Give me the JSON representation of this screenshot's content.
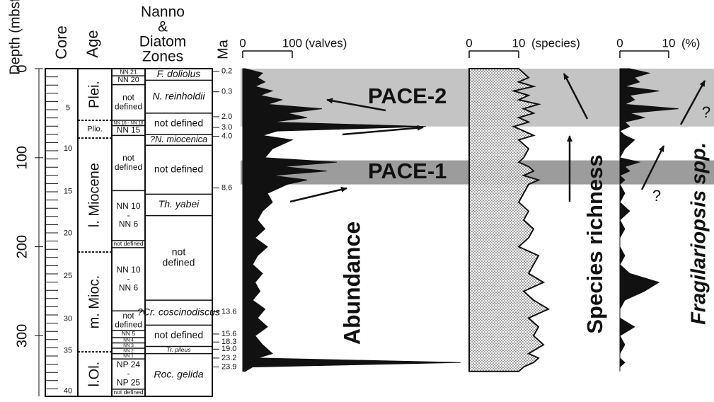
{
  "header": {
    "depth_label": "Depth (mbsf)",
    "core_label": "Core",
    "age_label": "Age",
    "zones_label": [
      "Nanno",
      "&",
      "Diatom",
      "Zones"
    ],
    "ma_label": "Ma"
  },
  "depth_axis": {
    "ylim": [
      0,
      368
    ],
    "yticks": [
      0,
      100,
      200,
      300
    ]
  },
  "cores": [
    {
      "depth": 44,
      "label": "5"
    },
    {
      "depth": 90,
      "label": "10"
    },
    {
      "depth": 138,
      "label": "15"
    },
    {
      "depth": 185,
      "label": "20"
    },
    {
      "depth": 233,
      "label": "25"
    },
    {
      "depth": 281,
      "label": "30"
    },
    {
      "depth": 317,
      "label": "35"
    },
    {
      "depth": 362,
      "label": "40"
    }
  ],
  "ages": [
    {
      "top": 0,
      "bottom": 58,
      "label": "Plei."
    },
    {
      "top": 58,
      "bottom": 78,
      "label": "Plio."
    },
    {
      "top": 78,
      "bottom": 206,
      "label": "l. Miocene"
    },
    {
      "top": 206,
      "bottom": 318,
      "label": "m. Mioc."
    },
    {
      "top": 318,
      "bottom": 368,
      "label": "l.Ol."
    }
  ],
  "nanno_zones": [
    {
      "top": 0,
      "bottom": 8,
      "label": "NN 21"
    },
    {
      "top": 8,
      "bottom": 18,
      "label": "NN 20"
    },
    {
      "top": 18,
      "bottom": 58,
      "label": [
        "not",
        "defined"
      ]
    },
    {
      "top": 58,
      "bottom": 64,
      "label": "NN 16 - NN 18"
    },
    {
      "top": 64,
      "bottom": 75,
      "label": "NN 15"
    },
    {
      "top": 75,
      "bottom": 137,
      "label": [
        "not",
        "defined"
      ]
    },
    {
      "top": 137,
      "bottom": 193,
      "label": [
        "NN 10",
        "-",
        "NN 6"
      ]
    },
    {
      "top": 193,
      "bottom": 201,
      "label": "not defined"
    },
    {
      "top": 201,
      "bottom": 272,
      "label": [
        "NN 10",
        "-",
        "NN 6"
      ]
    },
    {
      "top": 272,
      "bottom": 294,
      "label": [
        "not",
        "defined"
      ]
    },
    {
      "top": 294,
      "bottom": 302,
      "label": "NN 5"
    },
    {
      "top": 302,
      "bottom": 308,
      "label": "NN 4"
    },
    {
      "top": 308,
      "bottom": 314,
      "label": "NN 3"
    },
    {
      "top": 314,
      "bottom": 320,
      "label": "NN 2"
    },
    {
      "top": 320,
      "bottom": 326,
      "label": "NN 1"
    },
    {
      "top": 326,
      "bottom": 360,
      "label": [
        "NP 24",
        "-",
        "NP 25"
      ]
    },
    {
      "top": 360,
      "bottom": 368,
      "label": "not defined"
    }
  ],
  "diatom_zones": [
    {
      "top": 0,
      "bottom": 13,
      "label": "F. doliolus"
    },
    {
      "top": 13,
      "bottom": 50,
      "label": "N. reinholdii"
    },
    {
      "top": 50,
      "bottom": 74,
      "label": "not defined"
    },
    {
      "top": 74,
      "bottom": 86,
      "label": "?N. miocenica"
    },
    {
      "top": 86,
      "bottom": 141,
      "label": "not defined"
    },
    {
      "top": 141,
      "bottom": 165,
      "label": "Th. yabei"
    },
    {
      "top": 165,
      "bottom": 260,
      "label": [
        "not",
        "defined"
      ]
    },
    {
      "top": 260,
      "bottom": 288,
      "label": "?Cr. coscinodiscus"
    },
    {
      "top": 288,
      "bottom": 312,
      "label": "not defined"
    },
    {
      "top": 312,
      "bottom": 320,
      "label": "Tr. pileus"
    },
    {
      "top": 320,
      "bottom": 368,
      "label": "Roc. gelida"
    }
  ],
  "age_markers": [
    {
      "depth": 3,
      "ma": "0.2"
    },
    {
      "depth": 26,
      "ma": "0.3"
    },
    {
      "depth": 54,
      "ma": "2.0"
    },
    {
      "depth": 66,
      "ma": "3.0"
    },
    {
      "depth": 76,
      "ma": "4.0"
    },
    {
      "depth": 134,
      "ma": "8.6"
    },
    {
      "depth": 273,
      "ma": "13.6"
    },
    {
      "depth": 298,
      "ma": "15.6"
    },
    {
      "depth": 307,
      "ma": "18.3"
    },
    {
      "depth": 315,
      "ma": "19.0"
    },
    {
      "depth": 325,
      "ma": "23.2"
    },
    {
      "depth": 335,
      "ma": "23.9"
    }
  ],
  "bands": [
    {
      "top": 0,
      "bottom": 65,
      "label": "PACE-2",
      "color": "#c4c4c4"
    },
    {
      "top": 103,
      "bottom": 130,
      "label": "PACE-1",
      "color": "#9c9c9c"
    }
  ],
  "chart_data": [
    {
      "type": "area",
      "x_label": "(valves)",
      "annotation": "Abundance",
      "color": "#111111",
      "xlim": [
        0,
        446
      ],
      "xticks": [
        0,
        100
      ],
      "y": [
        0,
        5,
        10,
        15,
        20,
        25,
        30,
        35,
        40,
        45,
        50,
        55,
        60,
        65,
        70,
        75,
        80,
        90,
        100,
        105,
        110,
        115,
        120,
        125,
        130,
        140,
        150,
        160,
        170,
        180,
        190,
        200,
        210,
        220,
        230,
        240,
        250,
        260,
        270,
        280,
        290,
        300,
        310,
        320,
        325,
        330,
        335,
        340
      ],
      "values": [
        5,
        40,
        30,
        45,
        25,
        60,
        35,
        80,
        50,
        160,
        90,
        130,
        60,
        370,
        70,
        40,
        100,
        60,
        45,
        190,
        80,
        170,
        60,
        130,
        90,
        50,
        60,
        40,
        30,
        45,
        25,
        50,
        30,
        20,
        40,
        25,
        35,
        20,
        45,
        30,
        50,
        25,
        40,
        60,
        30,
        440,
        20,
        5
      ]
    },
    {
      "type": "stipple",
      "x_label": "(species)",
      "annotation": "Species richness",
      "color": "#111111",
      "xlim": [
        0,
        20
      ],
      "xticks": [
        0,
        10
      ],
      "y": [
        0,
        5,
        10,
        15,
        20,
        25,
        30,
        35,
        40,
        45,
        50,
        55,
        60,
        65,
        70,
        75,
        80,
        90,
        100,
        105,
        110,
        115,
        120,
        125,
        130,
        140,
        150,
        160,
        170,
        180,
        190,
        200,
        210,
        220,
        230,
        240,
        250,
        260,
        270,
        280,
        290,
        300,
        310,
        320,
        325,
        330,
        335,
        340
      ],
      "values": [
        10,
        11,
        12,
        10,
        13,
        9,
        12,
        10,
        14,
        11,
        13,
        10,
        12,
        9,
        11,
        13,
        10,
        12,
        11,
        10,
        12,
        13,
        11,
        14,
        12,
        11,
        10,
        12,
        11,
        13,
        12,
        10,
        14,
        13,
        12,
        15,
        11,
        13,
        16,
        12,
        14,
        13,
        15,
        12,
        14,
        13,
        11,
        10
      ]
    },
    {
      "type": "area",
      "x_label": "(%)",
      "annotation": "Fragilariopsis spp.",
      "color": "#111111",
      "xlim": [
        0,
        19
      ],
      "xticks": [
        0,
        10
      ],
      "annotations": [
        "?",
        "?"
      ],
      "y": [
        0,
        5,
        10,
        15,
        20,
        25,
        30,
        35,
        40,
        45,
        50,
        55,
        60,
        65,
        70,
        75,
        80,
        90,
        100,
        105,
        110,
        115,
        120,
        125,
        130,
        140,
        150,
        160,
        170,
        180,
        190,
        200,
        210,
        220,
        230,
        240,
        250,
        260,
        270,
        280,
        290,
        300,
        310,
        320,
        325,
        330,
        335,
        340
      ],
      "values": [
        2,
        6,
        3,
        4,
        1,
        8,
        2,
        3,
        1,
        12,
        2,
        5,
        1,
        2,
        0,
        1,
        3,
        1,
        0,
        4,
        1,
        2,
        0,
        1,
        0,
        1,
        0,
        2,
        0,
        1,
        0,
        0,
        1,
        0,
        2,
        8,
        5,
        1,
        0,
        0,
        3,
        0,
        1,
        0,
        0,
        1,
        0,
        0
      ]
    }
  ]
}
